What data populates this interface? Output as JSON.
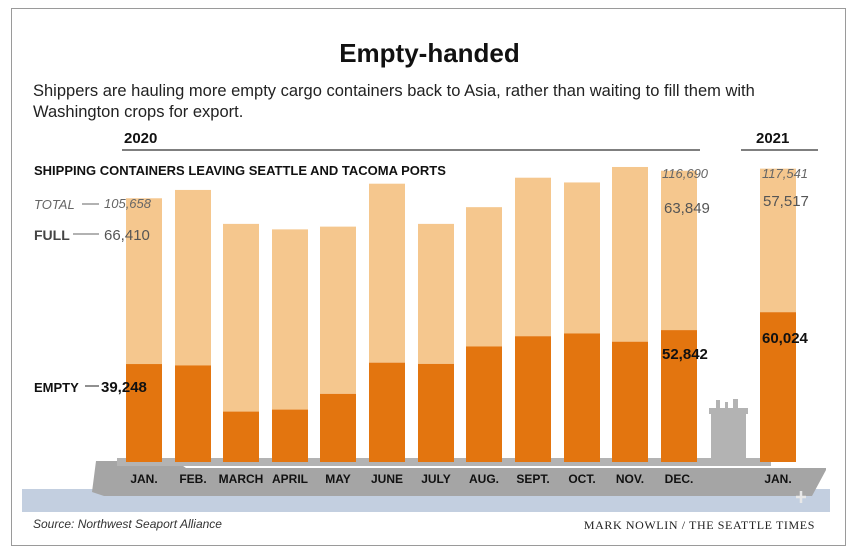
{
  "header": {
    "title": "Empty-handed",
    "subtitle": "Shippers are hauling more empty cargo containers back to Asia, rather than waiting to fill them with Washington crops for export."
  },
  "footer": {
    "source": "Source: Northwest Seaport Alliance",
    "credit": "MARK NOWLIN / THE SEATTLE TIMES"
  },
  "colors": {
    "full": "#f5c78e",
    "empty": "#e3750f",
    "ship": "#b3b3b3",
    "hull": "#a5a5a5",
    "water": "#c3cfe0"
  },
  "chart_data": {
    "type": "bar",
    "stacked": true,
    "title": "SHIPPING CONTAINERS LEAVING SEATTLE AND TACOMA PORTS",
    "year_labels": [
      "2020",
      "2021"
    ],
    "categories": [
      "JAN.",
      "FEB.",
      "MARCH",
      "APRIL",
      "MAY",
      "JUNE",
      "JULY",
      "AUG.",
      "SEPT.",
      "OCT.",
      "NOV.",
      "DEC.",
      "JAN."
    ],
    "series": [
      {
        "name": "EMPTY",
        "values": [
          39248,
          38700,
          20200,
          21000,
          27300,
          39800,
          39300,
          46300,
          50400,
          51500,
          48200,
          52842,
          60024
        ]
      },
      {
        "name": "FULL",
        "values": [
          66410,
          70300,
          75200,
          72200,
          67000,
          71700,
          56100,
          55800,
          63500,
          60500,
          70000,
          63849,
          57517
        ]
      }
    ],
    "totals": [
      105658,
      109000,
      95400,
      93200,
      94300,
      111500,
      95400,
      102100,
      113900,
      112000,
      118200,
      116690,
      117541
    ],
    "ylim": [
      0,
      125000
    ],
    "labels": {
      "total_label": "TOTAL",
      "full_label": "FULL",
      "empty_label": "EMPTY",
      "jan_total": "105,658",
      "jan_full": "66,410",
      "jan_empty": "39,248",
      "dec_total": "116,690",
      "dec_full": "63,849",
      "dec_empty": "52,842",
      "jan21_total": "117,541",
      "jan21_full": "57,517",
      "jan21_empty": "60,024"
    }
  }
}
